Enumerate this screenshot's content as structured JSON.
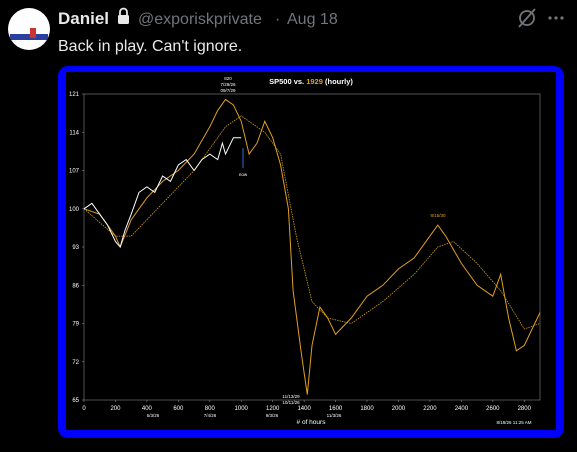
{
  "tweet": {
    "name": "Daniel",
    "handle": "@exporiskprivate",
    "date": "Aug 18",
    "text": "Back in play. Can't ignore."
  },
  "chart_data": {
    "type": "line",
    "title": [
      "SP500 vs. ",
      "1929",
      " (hourly)"
    ],
    "xlabel": "# of hours",
    "xlim": [
      0,
      2900
    ],
    "ylim": [
      65,
      121
    ],
    "xticks": [
      0,
      200,
      400,
      600,
      800,
      1000,
      1200,
      1400,
      1600,
      1800,
      2000,
      2200,
      2400,
      2600,
      2800
    ],
    "yticks": [
      65,
      72,
      79,
      86,
      93,
      100,
      107,
      114,
      121
    ],
    "annotations": [
      "820",
      "7/29/26",
      "09/7/29",
      "now",
      "8/15/30",
      "11/13/29",
      "10/11/26",
      "5/3/26",
      "7/4/26",
      "9/3/26",
      "11/3/26",
      "8/18/26 11:25 AM"
    ],
    "series": [
      {
        "color": "#d4a017",
        "style": "ma",
        "x": [
          0,
          200,
          300,
          500,
          700,
          900,
          1000,
          1150,
          1250,
          1350,
          1450,
          1550,
          1700,
          1900,
          2100,
          2250,
          2350,
          2500,
          2650,
          2800,
          2900
        ],
        "values": [
          100,
          95,
          95,
          101,
          107,
          115,
          117,
          114,
          110,
          95,
          83,
          80,
          79,
          83,
          88,
          93,
          94,
          90,
          85,
          78,
          79
        ]
      },
      {
        "color": "#e0a020",
        "style": "solid",
        "x": [
          0,
          100,
          200,
          230,
          300,
          400,
          500,
          600,
          700,
          800,
          850,
          900,
          950,
          1000,
          1050,
          1100,
          1150,
          1200,
          1250,
          1300,
          1330,
          1380,
          1400,
          1420,
          1450,
          1500,
          1550,
          1600,
          1700,
          1800,
          1900,
          2000,
          2100,
          2200,
          2250,
          2300,
          2400,
          2500,
          2600,
          2650,
          2700,
          2750,
          2800,
          2850,
          2900
        ],
        "values": [
          100,
          99,
          95,
          93,
          98,
          102,
          105,
          107,
          110,
          115,
          118,
          120,
          119,
          116,
          110,
          112,
          116,
          113,
          108,
          100,
          85,
          74,
          70,
          66,
          75,
          82,
          80,
          77,
          80,
          84,
          86,
          89,
          91,
          95,
          97,
          95,
          90,
          86,
          84,
          88,
          80,
          74,
          75,
          78,
          81
        ]
      },
      {
        "color": "#ffffff",
        "style": "solid",
        "x": [
          0,
          50,
          100,
          150,
          200,
          230,
          260,
          300,
          350,
          400,
          450,
          500,
          550,
          600,
          650,
          700,
          750,
          800,
          850,
          880,
          900,
          950,
          1000
        ],
        "values": [
          100,
          101,
          99,
          97,
          94,
          93,
          96,
          99,
          103,
          104,
          103,
          106,
          105,
          108,
          109,
          107,
          109,
          110,
          109,
          112,
          110,
          113,
          113
        ]
      }
    ]
  }
}
